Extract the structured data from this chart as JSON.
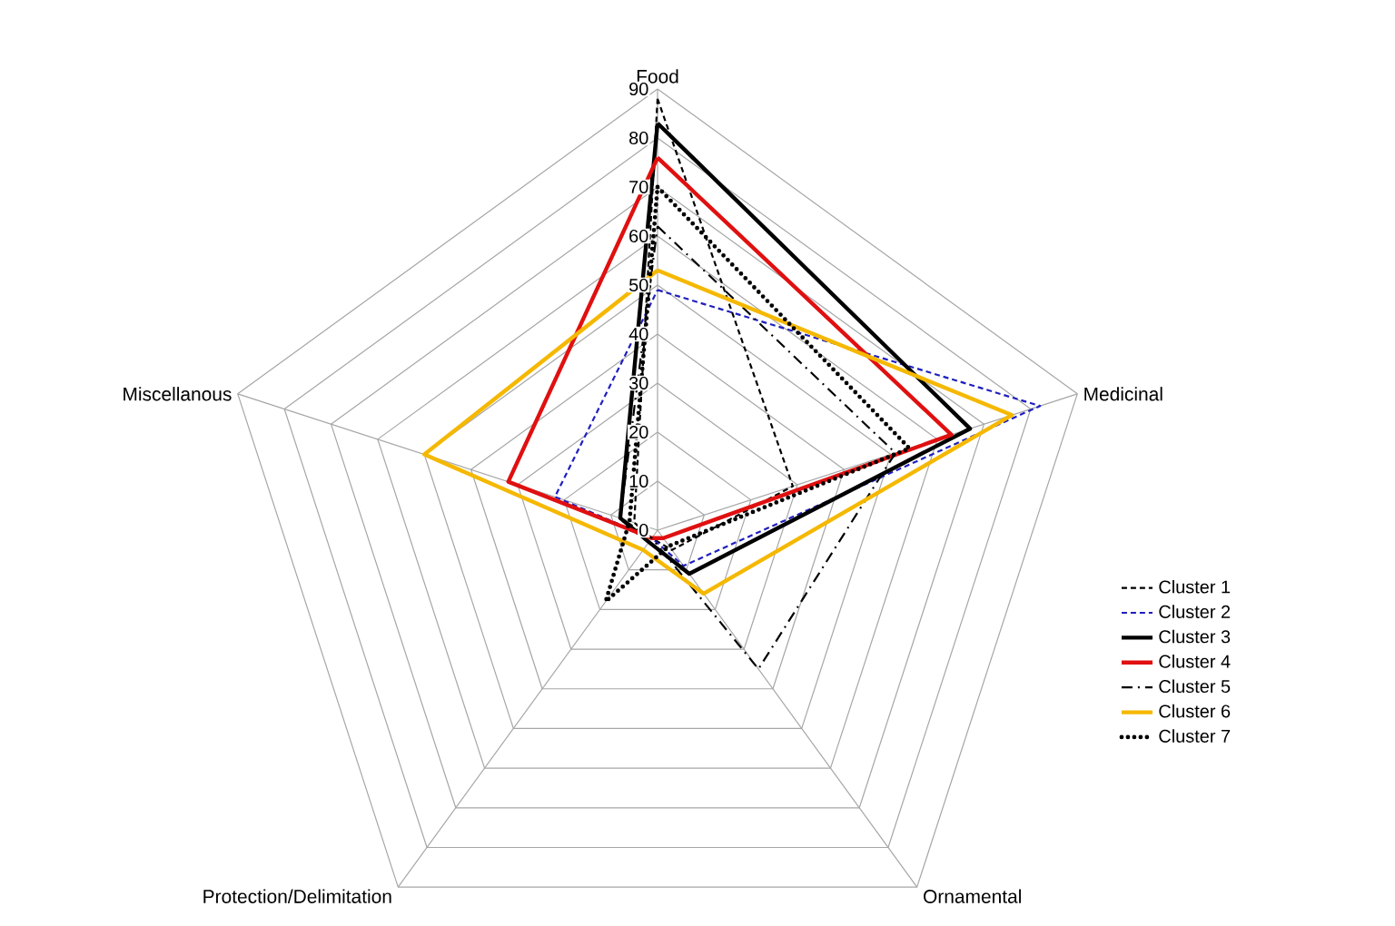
{
  "chart_data": {
    "type": "radar",
    "categories": [
      "Food",
      "Medicinal",
      "Ornamental",
      "Protection/Delimitation",
      "Miscellanous"
    ],
    "ylim": [
      0,
      90
    ],
    "yticks": [
      0,
      10,
      20,
      30,
      40,
      50,
      60,
      70,
      80,
      90
    ],
    "grid": true,
    "legend": "right",
    "series": [
      {
        "name": "Cluster 1",
        "color": "#000000",
        "line_style": "dashed",
        "values": [
          88,
          29,
          5,
          2,
          5
        ]
      },
      {
        "name": "Cluster 2",
        "color": "#1f1fbf",
        "line_style": "dashed",
        "values": [
          49,
          82,
          9,
          2,
          22
        ]
      },
      {
        "name": "Cluster 3",
        "color": "#000000",
        "line_style": "solid",
        "values": [
          83,
          67,
          11,
          3,
          8
        ]
      },
      {
        "name": "Cluster 4",
        "color": "#e01010",
        "line_style": "solid",
        "values": [
          76,
          63,
          2,
          2,
          32
        ]
      },
      {
        "name": "Cluster 5",
        "color": "#000000",
        "line_style": "dashdot",
        "values": [
          62,
          51,
          35,
          2,
          8
        ]
      },
      {
        "name": "Cluster 6",
        "color": "#f5b800",
        "line_style": "solid",
        "values": [
          53,
          76,
          16,
          5,
          50
        ]
      },
      {
        "name": "Cluster 7",
        "color": "#000000",
        "line_style": "dotted",
        "values": [
          70,
          54,
          4,
          18,
          6
        ]
      }
    ]
  }
}
